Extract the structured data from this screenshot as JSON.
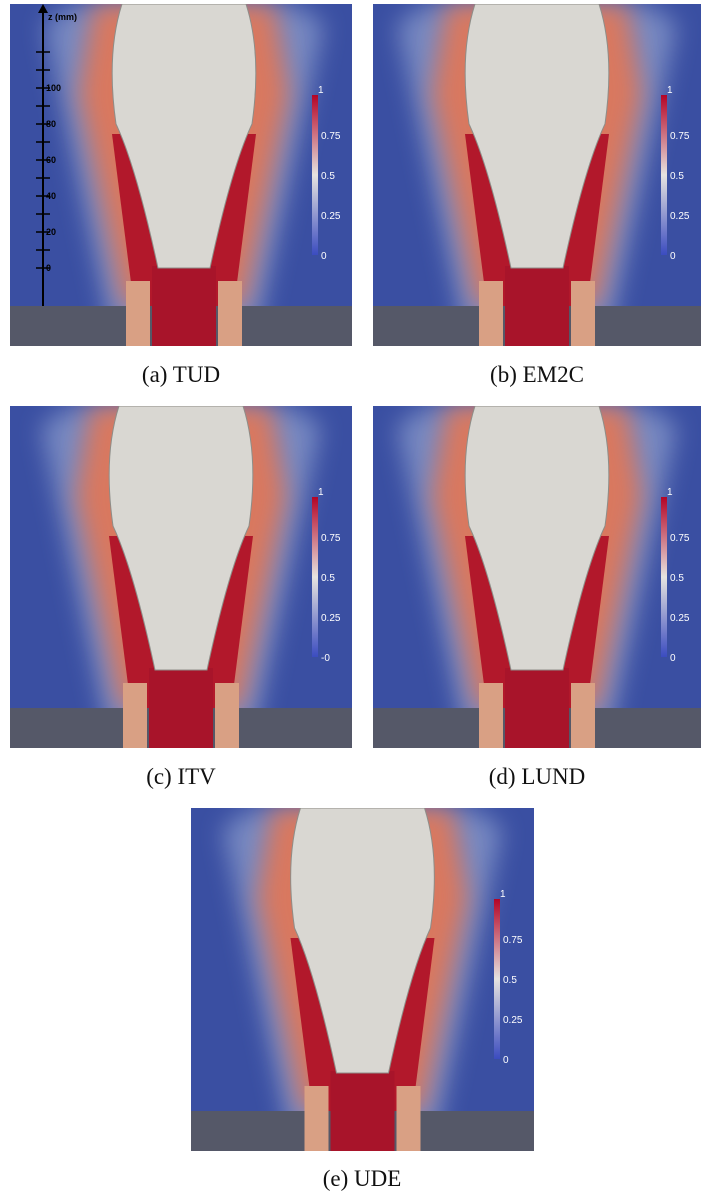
{
  "figure": {
    "panels": [
      {
        "caption": "(a) TUD",
        "colorbar": [
          "1",
          "0.75",
          "0.5",
          "0.25",
          "0"
        ]
      },
      {
        "caption": "(b) EM2C",
        "colorbar": [
          "1",
          "0.75",
          "0.5",
          "0.25",
          "0"
        ]
      },
      {
        "caption": "(c) ITV",
        "colorbar": [
          "1",
          "0.75",
          "0.5",
          "0.25",
          "-0"
        ]
      },
      {
        "caption": "(d) LUND",
        "colorbar": [
          "1",
          "0.75",
          "0.5",
          "0.25",
          "0"
        ]
      },
      {
        "caption": "(e) UDE",
        "colorbar": [
          "1",
          "0.75",
          "0.5",
          "0.25",
          "0"
        ]
      }
    ],
    "tud_axis": {
      "title": "z (mm)",
      "ticks": [
        "100",
        "80",
        "60",
        "40",
        "20",
        "0"
      ]
    }
  }
}
